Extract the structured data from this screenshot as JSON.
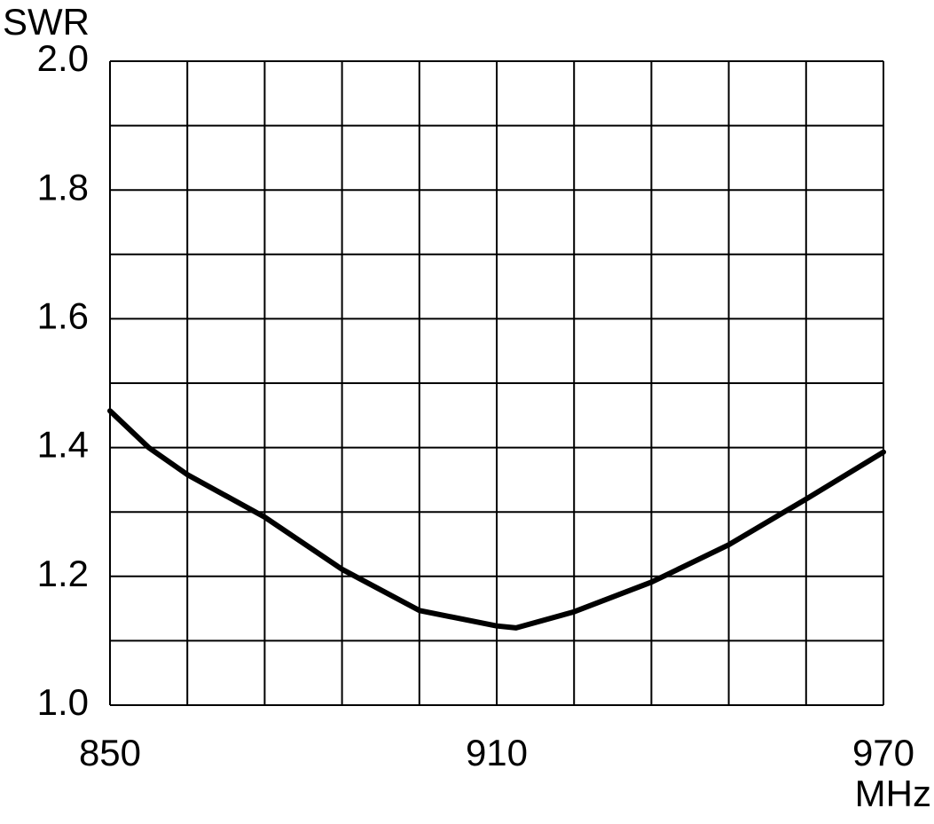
{
  "chart_data": {
    "type": "line",
    "ylabel": "SWR",
    "xlabel": "MHz",
    "x": [
      850,
      856,
      862,
      874,
      886,
      898,
      910,
      913,
      922,
      934,
      946,
      958,
      970
    ],
    "series": [
      {
        "color": "#000000",
        "values": [
          1.457,
          1.4,
          1.358,
          1.292,
          1.211,
          1.147,
          1.123,
          1.12,
          1.145,
          1.191,
          1.249,
          1.32,
          1.393
        ]
      }
    ],
    "xlim": [
      850,
      970
    ],
    "ylim": [
      1.0,
      2.0
    ],
    "xticks": [
      850,
      910,
      970
    ],
    "yticks": [
      {
        "value": 1.0,
        "label": "1.0"
      },
      1.2,
      1.4,
      1.6,
      1.8,
      {
        "value": 2.0,
        "label": "2.0"
      }
    ],
    "xgrid": [
      862,
      874,
      886,
      898,
      922,
      934,
      946,
      958
    ],
    "ygrid": [
      1.1,
      1.3,
      1.5,
      1.7,
      1.9
    ],
    "grid": true
  }
}
